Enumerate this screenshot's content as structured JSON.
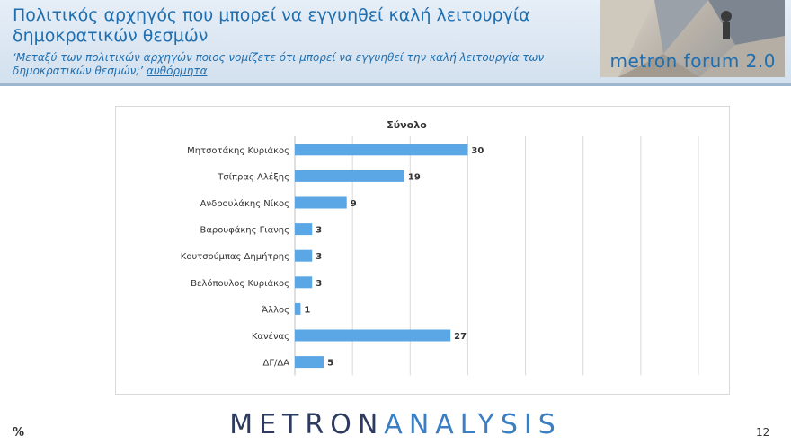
{
  "header": {
    "title": "Πολιτικός αρχηγός που μπορεί να εγγυηθεί καλή λειτουργία δημοκρατικών θεσμών",
    "question": "‘Μεταξύ των πολιτικών αρχηγών ποιος νομίζετε ότι μπορεί να εγγυηθεί την καλή λειτουργία των δημοκρατικών θεσμών;’",
    "question_note": "αυθόρμητα",
    "brand": "metron forum 2.0"
  },
  "footer": {
    "logo_part1": "METRON",
    "logo_part2": "ANALYSIS",
    "unit": "%",
    "page_number": "12"
  },
  "colors": {
    "bar": "#5ba7e6",
    "title": "#1f6fb0",
    "grid": "#d9d9d9"
  },
  "chart_data": {
    "type": "bar",
    "orientation": "horizontal",
    "title": "Σύνολο",
    "categories": [
      "Μητσοτάκης Κυριάκος",
      "Τσίπρας Αλέξης",
      "Ανδρουλάκης Νίκος",
      "Βαρουφάκης Γιανης",
      "Κουτσούμπας Δημήτρης",
      "Βελόπουλος Κυριάκος",
      "Άλλος",
      "Κανένας",
      "ΔΓ/ΔΑ"
    ],
    "values": [
      30,
      19,
      9,
      3,
      3,
      3,
      1,
      27,
      5
    ],
    "xlim": [
      0,
      70
    ],
    "grid": true,
    "data_labels": true
  }
}
